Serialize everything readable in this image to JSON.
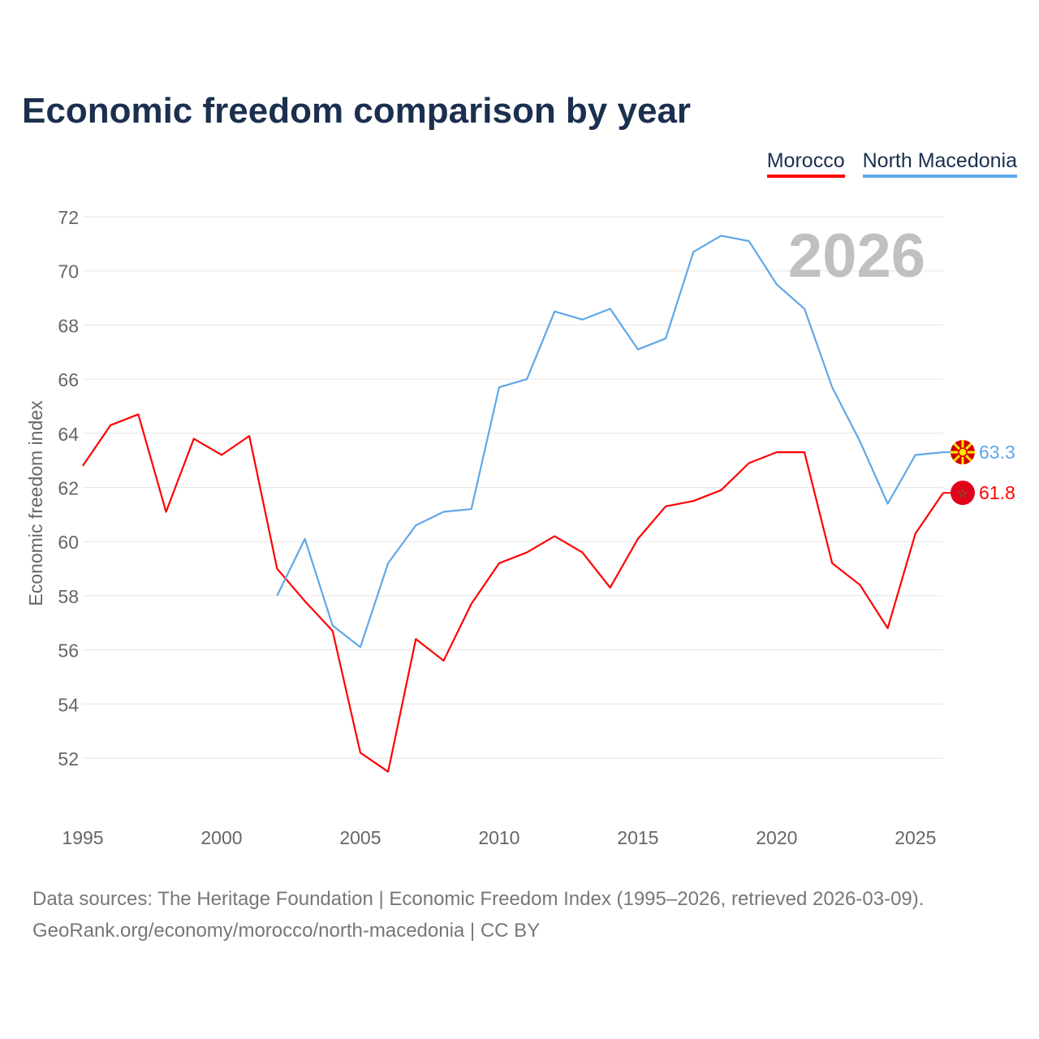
{
  "chart_data": {
    "type": "line",
    "title": "Economic freedom comparison by year",
    "ylabel": "Economic freedom index",
    "xlabel": "",
    "ylim": [
      50,
      72
    ],
    "xlim": [
      1995,
      2026
    ],
    "yticks": [
      52,
      54,
      56,
      58,
      60,
      62,
      64,
      66,
      68,
      70,
      72
    ],
    "xticks": [
      1995,
      2000,
      2005,
      2010,
      2015,
      2020,
      2025
    ],
    "grid": true,
    "legend_position": "top-right",
    "watermark_year": "2026",
    "series": [
      {
        "name": "Morocco",
        "color": "#ff0000",
        "x": [
          1995,
          1996,
          1997,
          1998,
          1999,
          2000,
          2001,
          2002,
          2003,
          2004,
          2005,
          2006,
          2007,
          2008,
          2009,
          2010,
          2011,
          2012,
          2013,
          2014,
          2015,
          2016,
          2017,
          2018,
          2019,
          2020,
          2021,
          2022,
          2023,
          2024,
          2025,
          2026
        ],
        "values": [
          62.8,
          64.3,
          64.7,
          61.1,
          63.8,
          63.2,
          63.9,
          59.0,
          57.8,
          56.7,
          52.2,
          51.5,
          56.4,
          55.6,
          57.7,
          59.2,
          59.6,
          60.2,
          59.6,
          58.3,
          60.1,
          61.3,
          61.5,
          61.9,
          62.9,
          63.3,
          63.3,
          59.2,
          58.4,
          56.8,
          60.3,
          61.8
        ],
        "end_label": "61.8"
      },
      {
        "name": "North Macedonia",
        "color": "#5fa8e8",
        "x": [
          2002,
          2003,
          2004,
          2005,
          2006,
          2007,
          2008,
          2009,
          2010,
          2011,
          2012,
          2013,
          2014,
          2015,
          2016,
          2017,
          2018,
          2019,
          2020,
          2021,
          2022,
          2023,
          2024,
          2025,
          2026
        ],
        "values": [
          58.0,
          60.1,
          56.9,
          56.1,
          59.2,
          60.6,
          61.1,
          61.2,
          65.7,
          66.0,
          68.5,
          68.2,
          68.6,
          67.1,
          67.5,
          70.7,
          71.3,
          71.1,
          69.5,
          68.6,
          65.7,
          63.7,
          61.4,
          63.2,
          63.3
        ],
        "end_label": "63.3"
      }
    ]
  },
  "source": {
    "line1": "Data sources: The Heritage Foundation | Economic Freedom Index (1995–2026, retrieved 2026-03-09).",
    "line2": "GeoRank.org/economy/morocco/north-macedonia | CC BY"
  }
}
